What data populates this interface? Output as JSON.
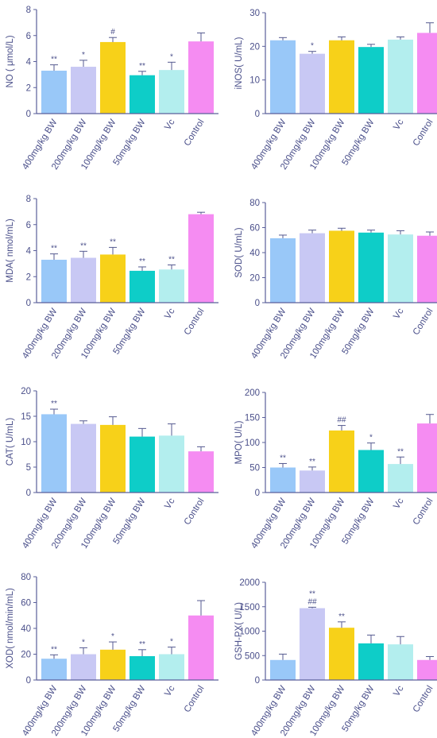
{
  "colors": {
    "axis": "#5a5f9a",
    "text": "#4a4f8a",
    "errorbar": "#555a90",
    "bars": [
      "#99c8f8",
      "#c8c8f4",
      "#f7d119",
      "#0ecdc8",
      "#b3eeee",
      "#f58cf2"
    ]
  },
  "chart_data": [
    {
      "type": "bar",
      "ylabel": "NO ( μmol/L)",
      "ylim": [
        0,
        8
      ],
      "yticks": [
        "0",
        "2",
        "4",
        "6",
        "8"
      ],
      "categories": [
        "400mg/kg BW",
        "200mg/kg BW",
        "100mg/kg BW",
        "50mg/kg BW",
        "Vc",
        "Control"
      ],
      "values": [
        3.3,
        3.6,
        5.5,
        2.95,
        3.35,
        5.55
      ],
      "errors": [
        0.45,
        0.5,
        0.35,
        0.3,
        0.6,
        0.65
      ],
      "annotations": [
        "**",
        "*",
        "#",
        "**",
        "*",
        ""
      ]
    },
    {
      "type": "bar",
      "ylabel": "iNOS( U/mL)",
      "ylim": [
        0,
        30
      ],
      "yticks": [
        "0",
        "10",
        "20",
        "30"
      ],
      "categories": [
        "400mg/kg BW",
        "200mg/kg BW",
        "100mg/kg BW",
        "50mg/kg BW",
        "Vc",
        "Control"
      ],
      "values": [
        21.8,
        17.8,
        21.8,
        19.8,
        22.0,
        24.0
      ],
      "errors": [
        0.8,
        0.7,
        1.0,
        0.8,
        0.8,
        3.0
      ],
      "annotations": [
        "",
        "*",
        "",
        "",
        "",
        ""
      ]
    },
    {
      "type": "bar",
      "ylabel": "MDA( nmol/mL)",
      "ylim": [
        0,
        8
      ],
      "yticks": [
        "0",
        "2",
        "4",
        "6",
        "8"
      ],
      "categories": [
        "400mg/kg BW",
        "200mg/kg BW",
        "100mg/kg BW",
        "50mg/kg BW",
        "Vc",
        "Control"
      ],
      "values": [
        3.3,
        3.45,
        3.7,
        2.45,
        2.55,
        6.8
      ],
      "errors": [
        0.45,
        0.5,
        0.55,
        0.3,
        0.35,
        0.15
      ],
      "annotations": [
        "**",
        "**",
        "**",
        "**",
        "**",
        ""
      ]
    },
    {
      "type": "bar",
      "ylabel": "SOD( U/mL)",
      "ylim": [
        0,
        80
      ],
      "yticks": [
        "0",
        "20",
        "40",
        "60",
        "80"
      ],
      "categories": [
        "400mg/kg BW",
        "200mg/kg BW",
        "100mg/kg BW",
        "50mg/kg BW",
        "Vc",
        "Control"
      ],
      "values": [
        51.5,
        55.5,
        57.5,
        56.0,
        54.5,
        53.5
      ],
      "errors": [
        2.5,
        2.5,
        2.0,
        2.0,
        3.0,
        3.0
      ],
      "annotations": [
        "",
        "",
        "",
        "",
        "",
        ""
      ]
    },
    {
      "type": "bar",
      "ylabel": "CAT( U/mL)",
      "ylim": [
        0,
        20
      ],
      "yticks": [
        "0",
        "5",
        "10",
        "15",
        "20"
      ],
      "categories": [
        "400mg/kg BW",
        "200mg/kg BW",
        "100mg/kg BW",
        "50mg/kg BW",
        "Vc",
        "Control"
      ],
      "values": [
        15.4,
        13.5,
        13.3,
        11.0,
        11.2,
        8.1
      ],
      "errors": [
        1.0,
        0.6,
        1.6,
        1.6,
        2.3,
        0.9
      ],
      "annotations": [
        "**",
        "",
        "",
        "",
        "",
        ""
      ]
    },
    {
      "type": "bar",
      "ylabel": "MPO( U/L)",
      "ylim": [
        0,
        200
      ],
      "yticks": [
        "0",
        "50",
        "100",
        "150",
        "200"
      ],
      "categories": [
        "400mg/kg BW",
        "200mg/kg BW",
        "100mg/kg BW",
        "50mg/kg BW",
        "Vc",
        "Control"
      ],
      "values": [
        50,
        44,
        124,
        85,
        57,
        138
      ],
      "errors": [
        8,
        7,
        10,
        14,
        14,
        18
      ],
      "annotations": [
        "**",
        "**",
        "##",
        "*",
        "**",
        ""
      ]
    },
    {
      "type": "bar",
      "ylabel": "XOD( nmol/min/mL)",
      "ylim": [
        0,
        80
      ],
      "yticks": [
        "0",
        "20",
        "40",
        "60",
        "80"
      ],
      "categories": [
        "400mg/kg BW",
        "200mg/kg BW",
        "100mg/kg BW",
        "50mg/kg BW",
        "Vc",
        "Control"
      ],
      "values": [
        16.5,
        20,
        23.5,
        18.5,
        20,
        50
      ],
      "errors": [
        3,
        5,
        6,
        5,
        5.5,
        11.5
      ],
      "annotations": [
        "**",
        "*",
        "*",
        "**",
        "*",
        ""
      ]
    },
    {
      "type": "bar",
      "ylabel": "GSH-PX( U/L)",
      "ylim": [
        0,
        2000
      ],
      "yticks": [
        "0",
        "500",
        "1000",
        "1500",
        "2000"
      ],
      "categories": [
        "400mg/kg BW",
        "200mg/kg BW",
        "100mg/kg BW",
        "50mg/kg BW",
        "Vc",
        "Control"
      ],
      "values": [
        410,
        1470,
        1070,
        750,
        730,
        410
      ],
      "errors": [
        120,
        20,
        120,
        170,
        160,
        70
      ],
      "annotations": [
        "",
        "**\n##",
        "**",
        "",
        "",
        ""
      ]
    }
  ]
}
